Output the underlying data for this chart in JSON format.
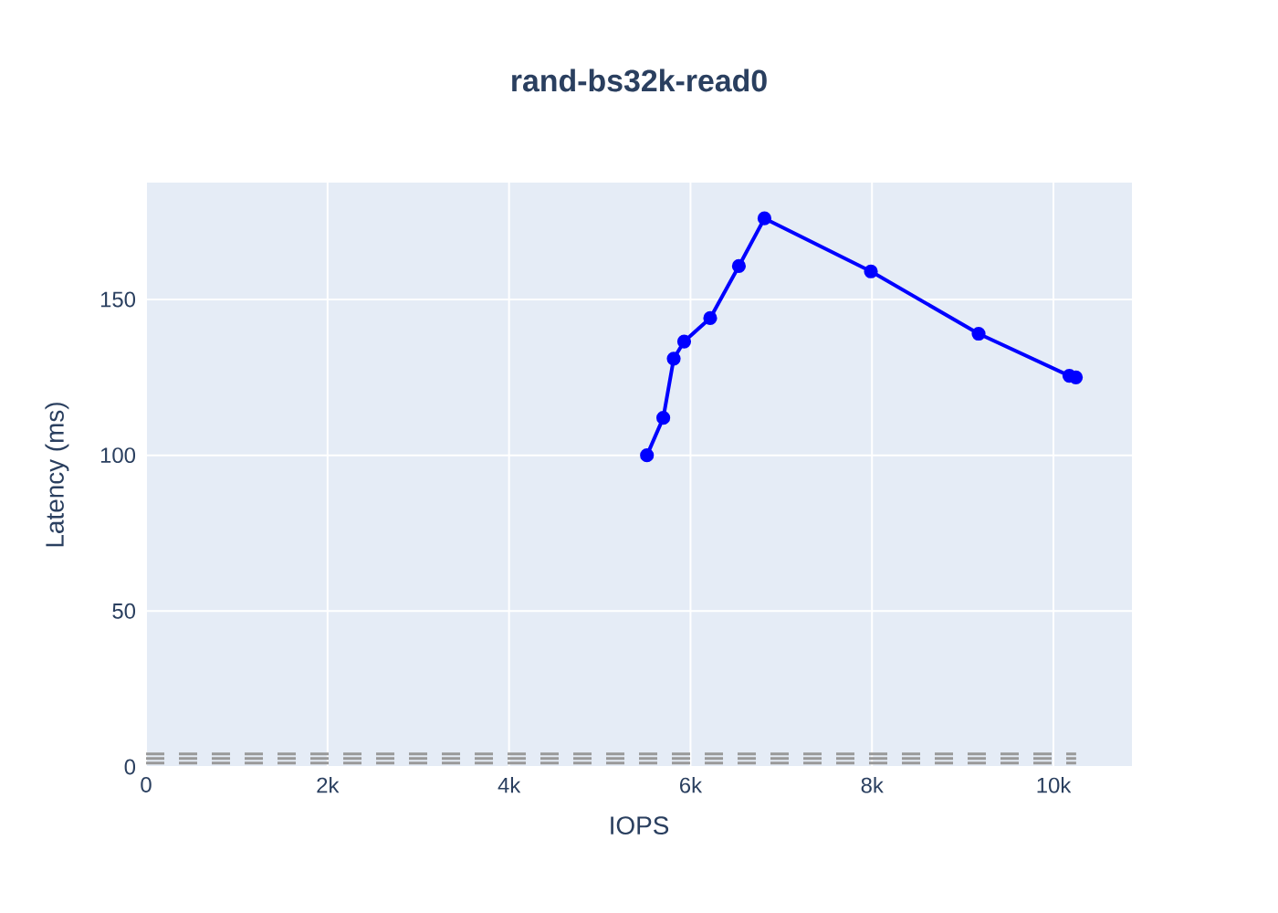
{
  "chart_data": {
    "type": "line",
    "title": "rand-bs32k-read0",
    "xlabel": "IOPS",
    "ylabel": "Latency (ms)",
    "xlim": [
      0,
      10865
    ],
    "ylim": [
      0,
      187.5
    ],
    "xticks": [
      {
        "value": 0,
        "label": "0"
      },
      {
        "value": 2000,
        "label": "2k"
      },
      {
        "value": 4000,
        "label": "4k"
      },
      {
        "value": 6000,
        "label": "6k"
      },
      {
        "value": 8000,
        "label": "8k"
      },
      {
        "value": 10000,
        "label": "10k"
      }
    ],
    "yticks": [
      0,
      50,
      100,
      150
    ],
    "grid": true,
    "marker": "circle",
    "line_style": "solid",
    "series": [
      {
        "color": "#0000ff",
        "x": [
          5520,
          5700,
          5815,
          5930,
          6217,
          6533,
          6815,
          7988,
          9175,
          10175,
          10247
        ],
        "values": [
          100,
          112,
          131,
          136.5,
          144,
          160.7,
          176,
          159,
          139,
          125.5,
          125
        ]
      },
      {
        "color": "#999999",
        "marker": "none",
        "line_style": "dashed",
        "x": [
          0,
          10250
        ],
        "values": [
          4.2,
          4.2
        ]
      },
      {
        "color": "#999999",
        "marker": "none",
        "line_style": "dashed",
        "x": [
          0,
          10250
        ],
        "values": [
          2.7,
          2.7
        ]
      },
      {
        "color": "#999999",
        "marker": "none",
        "line_style": "dashed",
        "x": [
          0,
          10250
        ],
        "values": [
          1.2,
          1.2
        ]
      }
    ]
  }
}
